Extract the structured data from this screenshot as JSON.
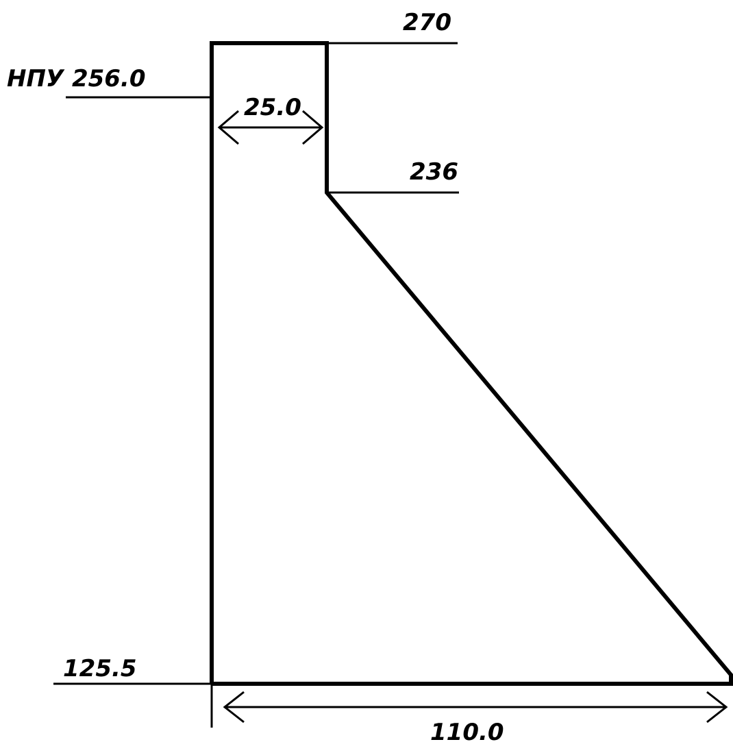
{
  "labels": {
    "npu": "НПУ 256.0",
    "crest": "270",
    "break": "236",
    "base": "125.5",
    "top_width": "25.0",
    "base_width": "110.0"
  }
}
